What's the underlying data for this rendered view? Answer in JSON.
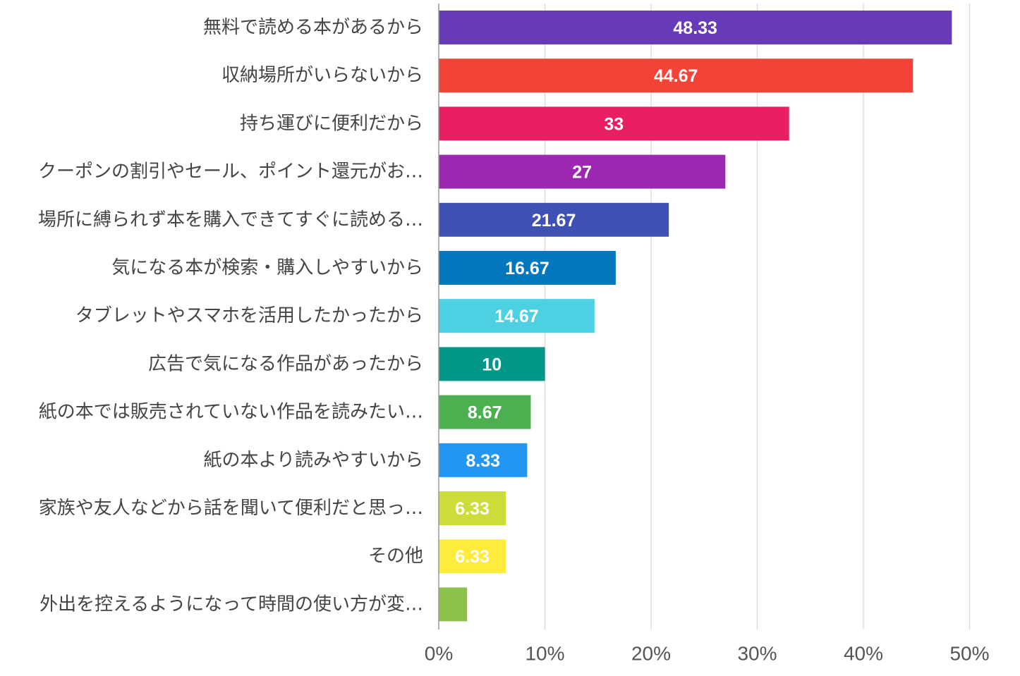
{
  "chart_data": {
    "type": "bar",
    "orientation": "horizontal",
    "title": "",
    "xlabel": "",
    "ylabel": "",
    "xlim": [
      0,
      55
    ],
    "x_ticks": [
      "0%",
      "10%",
      "20%",
      "30%",
      "40%",
      "50%"
    ],
    "tick_values": [
      0,
      10,
      20,
      30,
      40,
      50
    ],
    "grid": true,
    "categories": [
      "無料で読める本があるから",
      "収納場所がいらないから",
      "持ち運びに便利だから",
      "クーポンの割引やセール、ポイント還元がお…",
      "場所に縛られず本を購入できてすぐに読める…",
      "気になる本が検索・購入しやすいから",
      "タブレットやスマホを活用したかったから",
      "広告で気になる作品があったから",
      "紙の本では販売されていない作品を読みたい…",
      "紙の本より読みやすいから",
      "家族や友人などから話を聞いて便利だと思っ…",
      "その他",
      "外出を控えるようになって時間の使い方が変…"
    ],
    "values": [
      48.33,
      44.67,
      33,
      27,
      21.67,
      16.67,
      14.67,
      10,
      8.67,
      8.33,
      6.33,
      6.33,
      2.67
    ],
    "data_labels": [
      "48.33",
      "44.67",
      "33",
      "27",
      "21.67",
      "16.67",
      "14.67",
      "10",
      "8.67",
      "8.33",
      "6.33",
      "6.33",
      ""
    ],
    "colors": [
      "#673ab7",
      "#f44336",
      "#e91e63",
      "#9c27b0",
      "#3f51b5",
      "#0277bd",
      "#4dd0e1",
      "#009688",
      "#4caf50",
      "#2196f3",
      "#cddc39",
      "#ffeb3b",
      "#8bc34a"
    ]
  }
}
